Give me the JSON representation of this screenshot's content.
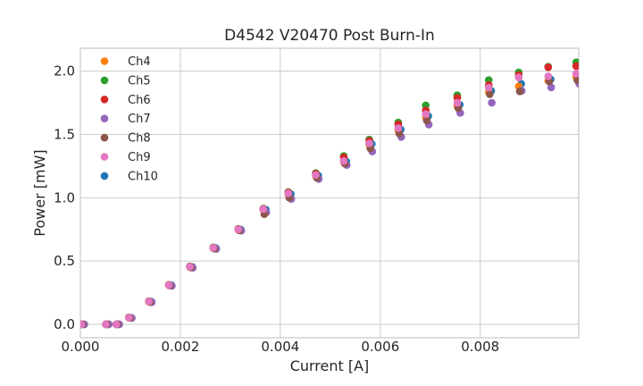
{
  "chart_data": {
    "type": "scatter",
    "title": "D4542 V20470 Post Burn-In",
    "xlabel": "Current [A]",
    "ylabel": "Power [mW]",
    "xlim": [
      0.0,
      0.00997
    ],
    "ylim": [
      -0.106,
      2.181
    ],
    "grid": true,
    "background": "#ffffff",
    "xticks": {
      "values": [
        0.0,
        0.002,
        0.004,
        0.006,
        0.008
      ],
      "labels": [
        "0.000",
        "0.002",
        "0.004",
        "0.006",
        "0.008"
      ]
    },
    "yticks": {
      "values": [
        0.0,
        0.5,
        1.0,
        1.5,
        2.0
      ],
      "labels": [
        "0.0",
        "0.5",
        "1.0",
        "1.5",
        "2.0"
      ]
    },
    "legend": {
      "position": "upper left",
      "entries": [
        "Ch4",
        "Ch5",
        "Ch6",
        "Ch7",
        "Ch8",
        "Ch9",
        "Ch10"
      ]
    },
    "x": [
      2e-05,
      0.00051,
      0.00072,
      0.00097,
      0.00137,
      0.00177,
      0.00219,
      0.00266,
      0.00316,
      0.00366,
      0.00416,
      0.00471,
      0.00527,
      0.00578,
      0.00636,
      0.00691,
      0.00754,
      0.00817,
      0.00877,
      0.00936,
      0.00992
    ],
    "series": [
      {
        "name": "Ch4",
        "color": "#ff7f0e",
        "dx": 0,
        "values": [
          0.0,
          0.0,
          0.0,
          0.052,
          0.178,
          0.308,
          0.452,
          0.601,
          0.746,
          0.905,
          1.028,
          1.172,
          1.283,
          1.42,
          1.532,
          1.635,
          1.725,
          1.835,
          1.88,
          1.925,
          1.955
        ]
      },
      {
        "name": "Ch5",
        "color": "#2ca02c",
        "dx": 0,
        "values": [
          0.0,
          0.0,
          0.0,
          0.055,
          0.183,
          0.313,
          0.458,
          0.608,
          0.755,
          0.915,
          1.045,
          1.195,
          1.33,
          1.46,
          1.595,
          1.73,
          1.81,
          1.93,
          1.99,
          2.035,
          2.07
        ]
      },
      {
        "name": "Ch6",
        "color": "#d62728",
        "dx": 0,
        "values": [
          0.0,
          0.0,
          0.0,
          0.054,
          0.182,
          0.312,
          0.457,
          0.607,
          0.753,
          0.912,
          1.042,
          1.19,
          1.32,
          1.45,
          1.58,
          1.69,
          1.79,
          1.89,
          1.97,
          2.03,
          2.04
        ]
      },
      {
        "name": "Ch7",
        "color": "#9467bd",
        "dx": 6e-05,
        "values": [
          0.0,
          0.0,
          0.0,
          0.05,
          0.175,
          0.304,
          0.447,
          0.596,
          0.74,
          0.884,
          0.99,
          1.148,
          1.258,
          1.365,
          1.48,
          1.578,
          1.67,
          1.75,
          1.845,
          1.872,
          1.9
        ]
      },
      {
        "name": "Ch8",
        "color": "#8c564b",
        "dx": 2e-05,
        "values": [
          0.0,
          0.0,
          0.0,
          0.051,
          0.176,
          0.306,
          0.449,
          0.598,
          0.742,
          0.87,
          1.0,
          1.158,
          1.27,
          1.39,
          1.508,
          1.61,
          1.708,
          1.818,
          1.84,
          1.918,
          1.93
        ]
      },
      {
        "name": "Ch9",
        "color": "#e377c2",
        "dx": 0,
        "values": [
          0.0,
          0.0,
          0.0,
          0.053,
          0.18,
          0.31,
          0.455,
          0.605,
          0.75,
          0.91,
          1.035,
          1.18,
          1.29,
          1.43,
          1.55,
          1.66,
          1.75,
          1.87,
          1.95,
          1.96,
          1.98
        ]
      },
      {
        "name": "Ch10",
        "color": "#1f77b4",
        "dx": 5e-05,
        "values": [
          0.0,
          0.0,
          0.0,
          0.052,
          0.179,
          0.309,
          0.453,
          0.603,
          0.748,
          0.907,
          1.03,
          1.175,
          1.287,
          1.425,
          1.54,
          1.645,
          1.735,
          1.845,
          1.9,
          1.935,
          1.965
        ]
      }
    ],
    "draw_order": [
      "Ch10",
      "Ch4",
      "Ch5",
      "Ch6",
      "Ch7",
      "Ch8",
      "Ch9"
    ],
    "styles": {
      "marker_radius": 4.3,
      "grid_color": "#cccccc",
      "spine_color": "#c9c9c9",
      "text_color": "#262626"
    }
  }
}
